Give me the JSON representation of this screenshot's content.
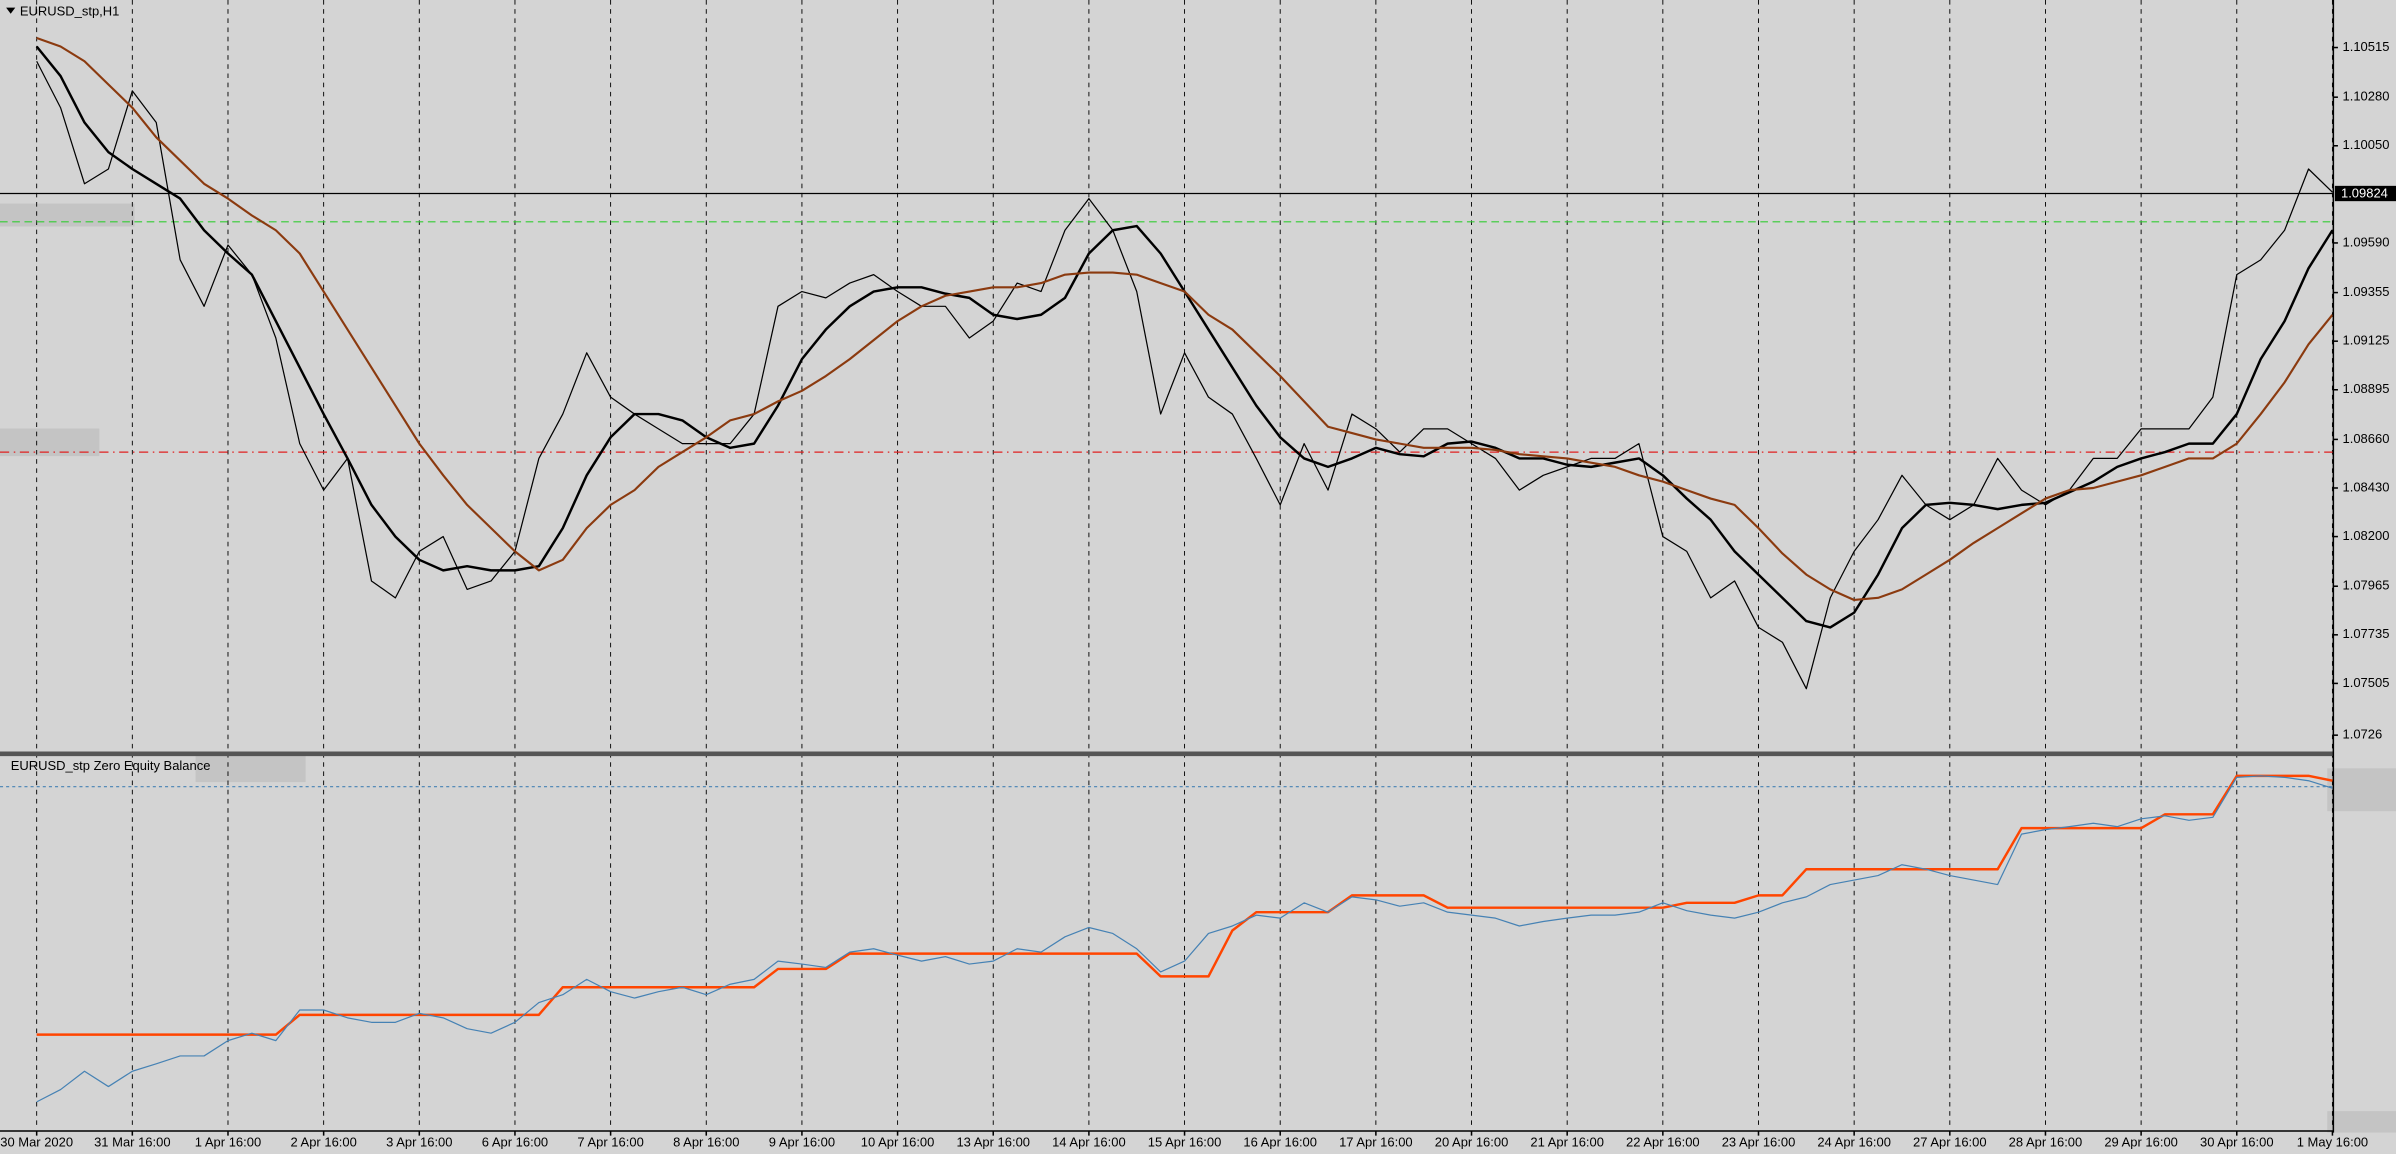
{
  "chart_data": [
    {
      "type": "line",
      "title": "EURUSD_stp,H1",
      "categories": [
        "30 Mar 2020",
        null,
        null,
        null,
        "31 Mar 16:00",
        null,
        null,
        null,
        "1 Apr 16:00",
        null,
        null,
        null,
        "2 Apr 16:00",
        null,
        null,
        null,
        "3 Apr 16:00",
        null,
        null,
        null,
        "6 Apr 16:00",
        null,
        null,
        null,
        "7 Apr 16:00",
        null,
        null,
        null,
        "8 Apr 16:00",
        null,
        null,
        null,
        "9 Apr 16:00",
        null,
        null,
        null,
        "10 Apr 16:00",
        null,
        null,
        null,
        "13 Apr 16:00",
        null,
        null,
        null,
        "14 Apr 16:00",
        null,
        null,
        null,
        "15 Apr 16:00",
        null,
        null,
        null,
        "16 Apr 16:00",
        null,
        null,
        null,
        "17 Apr 16:00",
        null,
        null,
        null,
        "20 Apr 16:00",
        null,
        null,
        null,
        "21 Apr 16:00",
        null,
        null,
        null,
        "22 Apr 16:00",
        null,
        null,
        null,
        "23 Apr 16:00",
        null,
        null,
        null,
        "24 Apr 16:00",
        null,
        null,
        null,
        "27 Apr 16:00",
        null,
        null,
        null,
        "28 Apr 16:00",
        null,
        null,
        null,
        "29 Apr 16:00",
        null,
        null,
        null,
        "30 Apr 16:00",
        null,
        null,
        null,
        "1 May 16:00"
      ],
      "series": [
        {
          "color": "#000000",
          "width": 0.8,
          "values": [
            1.1045,
            1.1023,
            1.0987,
            1.0994,
            1.1031,
            1.1016,
            1.0951,
            1.0929,
            1.0958,
            1.0944,
            1.0914,
            1.0864,
            1.0842,
            1.0857,
            1.0799,
            1.0791,
            1.0813,
            1.082,
            1.0795,
            1.0799,
            1.0813,
            1.0857,
            1.0878,
            1.0907,
            1.0886,
            1.0878,
            1.0871,
            1.0864,
            1.0864,
            1.0864,
            1.0878,
            1.0929,
            1.0936,
            1.0933,
            1.094,
            1.0944,
            1.0936,
            1.0929,
            1.0929,
            1.0914,
            1.0922,
            1.094,
            1.0936,
            1.0965,
            1.098,
            1.0965,
            1.0936,
            1.0878,
            1.0907,
            1.0886,
            1.0878,
            1.0857,
            1.0835,
            1.0864,
            1.0842,
            1.0878,
            1.0871,
            1.086,
            1.0871,
            1.0871,
            1.0864,
            1.0857,
            1.0842,
            1.0849,
            1.0853,
            1.0857,
            1.0857,
            1.0864,
            1.082,
            1.0813,
            1.0791,
            1.0799,
            1.0777,
            1.077,
            1.0748,
            1.0791,
            1.0813,
            1.0828,
            1.0849,
            1.0835,
            1.0828,
            1.0835,
            1.0857,
            1.0842,
            1.0835,
            1.0842,
            1.0857,
            1.0857,
            1.0871,
            1.0871,
            1.0871,
            1.0886,
            1.0944,
            1.0951,
            1.0965,
            1.0994,
            1.0983
          ]
        },
        {
          "color": "#000000",
          "width": 1.6,
          "values": [
            1.1052,
            1.1038,
            1.1016,
            1.1002,
            1.0994,
            1.0987,
            1.098,
            1.0965,
            1.0954,
            1.0944,
            1.0922,
            1.09,
            1.0878,
            1.0857,
            1.0835,
            1.082,
            1.0809,
            1.0804,
            1.0806,
            1.0804,
            1.0804,
            1.0806,
            1.0824,
            1.0849,
            1.0867,
            1.0878,
            1.0878,
            1.0875,
            1.0867,
            1.0862,
            1.0864,
            1.0882,
            1.0904,
            1.0918,
            1.0929,
            1.0936,
            1.0938,
            1.0938,
            1.0935,
            1.0933,
            1.0925,
            1.0923,
            1.0925,
            1.0933,
            1.0954,
            1.0965,
            1.0967,
            1.0954,
            1.0936,
            1.0918,
            1.09,
            1.0882,
            1.0867,
            1.0857,
            1.0853,
            1.0857,
            1.0862,
            1.0859,
            1.0858,
            1.0864,
            1.0865,
            1.0862,
            1.0857,
            1.0857,
            1.0854,
            1.0853,
            1.0855,
            1.0857,
            1.0849,
            1.0838,
            1.0828,
            1.0813,
            1.0802,
            1.0791,
            1.078,
            1.0777,
            1.0784,
            1.0802,
            1.0824,
            1.0835,
            1.0836,
            1.0835,
            1.0833,
            1.0835,
            1.0836,
            1.0841,
            1.0846,
            1.0853,
            1.0857,
            1.086,
            1.0864,
            1.0864,
            1.0878,
            1.0904,
            1.0922,
            1.0947,
            1.0965
          ]
        },
        {
          "color": "#8b3a0f",
          "width": 1.4,
          "values": [
            1.1056,
            1.1052,
            1.1045,
            1.1034,
            1.1023,
            1.1009,
            1.0998,
            1.0987,
            1.098,
            1.0972,
            1.0965,
            1.0954,
            1.0936,
            1.0918,
            1.09,
            1.0882,
            1.0864,
            1.0849,
            1.0835,
            1.0824,
            1.0813,
            1.0804,
            1.0809,
            1.0824,
            1.0835,
            1.0842,
            1.0853,
            1.086,
            1.0867,
            1.0875,
            1.0878,
            1.0884,
            1.0889,
            1.0896,
            1.0904,
            1.0913,
            1.0922,
            1.0929,
            1.0934,
            1.0936,
            1.0938,
            1.0938,
            1.094,
            1.0944,
            1.0945,
            1.0945,
            1.0944,
            1.094,
            1.0936,
            1.0925,
            1.0918,
            1.0907,
            1.0896,
            1.0884,
            1.0872,
            1.0869,
            1.0866,
            1.0864,
            1.0862,
            1.0862,
            1.0862,
            1.0861,
            1.0859,
            1.0858,
            1.0857,
            1.0855,
            1.0853,
            1.0849,
            1.0846,
            1.0842,
            1.0838,
            1.0835,
            1.0824,
            1.0812,
            1.0802,
            1.0795,
            1.079,
            1.0791,
            1.0795,
            1.0802,
            1.0809,
            1.0817,
            1.0824,
            1.0831,
            1.0838,
            1.0842,
            1.0843,
            1.0846,
            1.0849,
            1.0853,
            1.0857,
            1.0857,
            1.0864,
            1.0878,
            1.0893,
            1.0911,
            1.0925
          ]
        }
      ],
      "ylim": [
        1.0719,
        1.1074
      ],
      "yticks": [
        1.10515,
        {
          "value": 1.1028,
          "label": "1.10280"
        },
        {
          "value": 1.1005,
          "label": "1.10050"
        },
        {
          "value": 1.0959,
          "label": "1.09590"
        },
        1.09355,
        1.09125,
        1.08895,
        {
          "value": 1.0866,
          "label": "1.08660"
        },
        {
          "value": 1.0843,
          "label": "1.08430"
        },
        {
          "value": 1.082,
          "label": "1.08200"
        },
        1.07965,
        1.07735,
        1.07505,
        1.0726
      ],
      "current_price": 1.09824,
      "levels": [
        {
          "value": 1.0969,
          "color": "#33cc33",
          "dash": "5 3"
        },
        {
          "value": 1.086,
          "color": "#e02020",
          "dash": "6 3 1 3"
        }
      ],
      "grid": true
    },
    {
      "type": "line",
      "title": "EURUSD_stp Zero Equity Balance",
      "series": [
        {
          "color": "#ff4500",
          "width": 1.6,
          "values": [
            25.4,
            25.4,
            25.4,
            25.4,
            25.4,
            25.4,
            25.4,
            25.4,
            25.4,
            25.4,
            25.4,
            30.7,
            30.7,
            30.7,
            30.7,
            30.7,
            30.7,
            30.7,
            30.7,
            30.7,
            30.7,
            30.7,
            38.1,
            38.1,
            38.1,
            38.1,
            38.1,
            38.1,
            38.1,
            38.1,
            38.1,
            43.0,
            43.0,
            43.0,
            47.1,
            47.1,
            47.1,
            47.1,
            47.1,
            47.1,
            47.1,
            47.1,
            47.1,
            47.1,
            47.1,
            47.1,
            47.1,
            41.0,
            41.0,
            41.0,
            53.3,
            58.2,
            58.2,
            58.2,
            58.2,
            62.7,
            62.7,
            62.7,
            62.7,
            59.4,
            59.4,
            59.4,
            59.4,
            59.4,
            59.4,
            59.4,
            59.4,
            59.4,
            59.4,
            60.7,
            60.7,
            60.7,
            62.7,
            62.7,
            69.7,
            69.7,
            69.7,
            69.7,
            69.7,
            69.7,
            69.7,
            69.7,
            69.7,
            80.7,
            80.7,
            80.7,
            80.7,
            80.7,
            80.7,
            84.4,
            84.4,
            84.4,
            94.7,
            94.7,
            94.7,
            94.7,
            93.4
          ]
        },
        {
          "color": "#4682b4",
          "width": 0.8,
          "values": [
            7.4,
            10.7,
            15.6,
            11.5,
            15.6,
            17.6,
            19.7,
            19.7,
            23.8,
            25.8,
            23.8,
            32.0,
            32.0,
            29.9,
            28.7,
            28.7,
            31.1,
            29.9,
            27.0,
            25.8,
            28.7,
            34.0,
            36.1,
            40.2,
            36.9,
            35.2,
            36.9,
            38.1,
            36.1,
            38.9,
            40.2,
            45.1,
            44.3,
            43.4,
            47.5,
            48.4,
            46.7,
            45.1,
            46.3,
            44.3,
            45.1,
            48.4,
            47.5,
            51.6,
            54.1,
            52.5,
            48.4,
            42.2,
            45.1,
            52.5,
            54.5,
            57.4,
            56.6,
            60.7,
            58.2,
            62.3,
            61.5,
            59.8,
            60.7,
            58.2,
            57.4,
            56.6,
            54.5,
            55.7,
            56.6,
            57.4,
            57.4,
            58.2,
            60.7,
            58.6,
            57.4,
            56.6,
            58.2,
            60.7,
            62.3,
            65.6,
            66.8,
            68.0,
            70.9,
            69.7,
            68.0,
            66.8,
            65.6,
            79.1,
            80.3,
            81.1,
            82.0,
            81.1,
            83.2,
            84.0,
            82.8,
            83.6,
            94.3,
            94.7,
            94.3,
            93.4,
            91.4
          ]
        }
      ],
      "ylim": [
        0,
        100
      ],
      "levels": [
        {
          "value": 91.8,
          "color": "#4682b4",
          "dash": "2 2"
        }
      ],
      "grid": true
    }
  ]
}
